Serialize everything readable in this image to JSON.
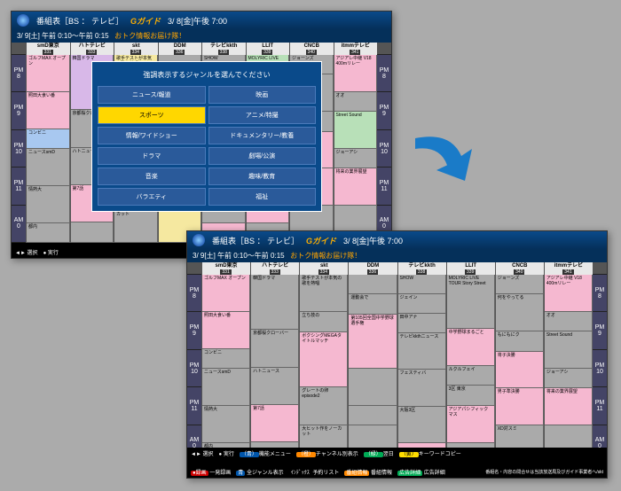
{
  "header": {
    "title": "番組表［BS ： テレビ］",
    "brand": "Gガイド",
    "date": "3/ 8[金]午後 7:00"
  },
  "sub": {
    "date": "3/ 9[土] 午前 0:10〜午前 0:15",
    "label": "おトク情報お届け隊！"
  },
  "channels": [
    {
      "name": "smD東京",
      "num": "331"
    },
    {
      "name": "ハトテレビ",
      "num": "333"
    },
    {
      "name": "skt",
      "num": "334"
    },
    {
      "name": "DDM",
      "num": "336"
    },
    {
      "name": "テレビkkth",
      "num": "338"
    },
    {
      "name": "LLIT",
      "num": "339"
    },
    {
      "name": "CNCB",
      "num": "340"
    },
    {
      "name": "itmmテレビ",
      "num": "341"
    }
  ],
  "times": [
    {
      "p": "PM",
      "h": "8"
    },
    {
      "p": "PM",
      "h": "9"
    },
    {
      "p": "PM",
      "h": "10"
    },
    {
      "p": "PM",
      "h": "11"
    },
    {
      "p": "AM",
      "h": "0"
    }
  ],
  "modal": {
    "title": "強調表示するジャンルを選んでください",
    "items": [
      "ニュース/報道",
      "映画",
      "スポーツ",
      "アニメ/特撮",
      "情報/ワイドショー",
      "ドキュメンタリー/教養",
      "ドラマ",
      "劇場/公演",
      "音楽",
      "趣味/教育",
      "バラエティ",
      "福祉"
    ],
    "selected": 2
  },
  "progs": {
    "0": [
      {
        "t": "ゴルフMAX オープン",
        "c": "c-pink",
        "h": 2
      },
      {
        "t": "照田大食い番",
        "c": "c-pink",
        "h": 2
      },
      {
        "t": "コンビニ",
        "c": "c-blue",
        "h": 1
      },
      {
        "t": "ニュースsmD",
        "c": "c-gray",
        "h": 2
      },
      {
        "t": "情熱大",
        "c": "c-gray",
        "h": 2
      },
      {
        "t": "都内",
        "c": "c-gray",
        "h": 1
      }
    ],
    "1": [
      {
        "t": "韓国ドラマ",
        "c": "c-purple",
        "h": 3
      },
      {
        "t": "京都桜クローバー",
        "c": "c-gray",
        "h": 2
      },
      {
        "t": "ハトニュース",
        "c": "c-gray",
        "h": 2
      },
      {
        "t": "第7話",
        "c": "c-pink",
        "h": 2
      },
      {
        "t": "",
        "c": "c-gray",
        "h": 1
      }
    ],
    "2": [
      {
        "t": "歌手テストが本気の歌を熱唱",
        "c": "c-yellow",
        "h": 2
      },
      {
        "t": "立ち技の",
        "c": "c-gray",
        "h": 1
      },
      {
        "t": "ボクシングMEGAタイトルマッチ",
        "c": "c-pink",
        "h": 3
      },
      {
        "t": "グレートの卵 episode2",
        "c": "c-yellow",
        "h": 2
      },
      {
        "t": "大ヒット作をノーカット",
        "c": "c-gray",
        "h": 2
      }
    ],
    "3": [
      {
        "t": "",
        "c": "c-gray",
        "h": 1
      },
      {
        "t": "運動会で",
        "c": "c-gray",
        "h": 1
      },
      {
        "t": "第105回全国中学野球選手権",
        "c": "c-pink",
        "h": 3
      },
      {
        "t": "",
        "c": "c-gray",
        "h": 2
      },
      {
        "t": "",
        "c": "c-gray",
        "h": 1
      },
      {
        "t": "",
        "c": "c-yellow",
        "h": 2
      }
    ],
    "4": [
      {
        "t": "SHOW",
        "c": "c-gray",
        "h": 1
      },
      {
        "t": "ジェイン",
        "c": "c-gray",
        "h": 1
      },
      {
        "t": "田中アナ",
        "c": "c-gray",
        "h": 1
      },
      {
        "t": "テレビkkthニュース",
        "c": "c-gray",
        "h": 2
      },
      {
        "t": "フェスティバ",
        "c": "c-gray",
        "h": 2
      },
      {
        "t": "大阪3区",
        "c": "c-gray",
        "h": 2
      },
      {
        "t": "",
        "c": "c-pink",
        "h": 1
      }
    ],
    "5": [
      {
        "t": "MOLYRIC LIVE TOUR Story Street",
        "c": "c-green",
        "h": 3
      },
      {
        "t": "中学野球まるごと",
        "c": "c-pink",
        "h": 2
      },
      {
        "t": "ルクルフェイ",
        "c": "c-gray",
        "h": 1
      },
      {
        "t": "3区 東京",
        "c": "c-gray",
        "h": 1
      },
      {
        "t": "アジアパシフィックマス",
        "c": "c-pink",
        "h": 2
      },
      {
        "t": "",
        "c": "c-gray",
        "h": 1
      }
    ],
    "6": [
      {
        "t": "ジョーンズ",
        "c": "c-gray",
        "h": 1
      },
      {
        "t": "何をやってる",
        "c": "c-gray",
        "h": 2
      },
      {
        "t": "もにもにク",
        "c": "c-gray",
        "h": 1
      },
      {
        "t": "将子決勝",
        "c": "c-pink",
        "h": 2
      },
      {
        "t": "男子準決勝",
        "c": "c-pink",
        "h": 2
      },
      {
        "t": "XD対スミ",
        "c": "c-gray",
        "h": 2
      }
    ],
    "7": [
      {
        "t": "アジアレ中継 V18 400mリレー",
        "c": "c-pink",
        "h": 2
      },
      {
        "t": "オオ",
        "c": "c-gray",
        "h": 1
      },
      {
        "t": "Street Sound",
        "c": "c-green",
        "h": 2
      },
      {
        "t": "ジョーアシ",
        "c": "c-gray",
        "h": 1
      },
      {
        "t": "将来の業界展望",
        "c": "c-pink",
        "h": 2
      },
      {
        "t": "",
        "c": "c-gray",
        "h": 2
      }
    ]
  },
  "footer": {
    "nav": [
      {
        "t": "選択",
        "i": "◄►"
      },
      {
        "t": "実行",
        "i": "●"
      }
    ],
    "legend": [
      {
        "t": "機能メニュー",
        "c": "t-blue",
        "p": "（青）"
      },
      {
        "t": "チャンネル別表示",
        "c": "t-orange",
        "p": "（橙）"
      },
      {
        "t": "翌日",
        "c": "t-green",
        "p": "（緑）"
      },
      {
        "t": "キーワードコピー",
        "c": "t-yellow",
        "p": "（黄）"
      }
    ],
    "row2": [
      {
        "t": "一発録画",
        "c": "t-red",
        "p": "●録画"
      },
      {
        "t": "全ジャンル表示",
        "c": "t-blue",
        "p": "青"
      },
      {
        "t": "予約リスト",
        "c": "",
        "p": "ｲﾝﾃﾞｯｸｽ"
      },
      {
        "t": "番組情報",
        "c": "t-orange",
        "p": "番組情報"
      },
      {
        "t": "広告詳細",
        "c": "t-green",
        "p": "広告詳細"
      }
    ],
    "note": "番組名・内容の問合せは当該放送局及びガイド事業者へ/skt"
  }
}
